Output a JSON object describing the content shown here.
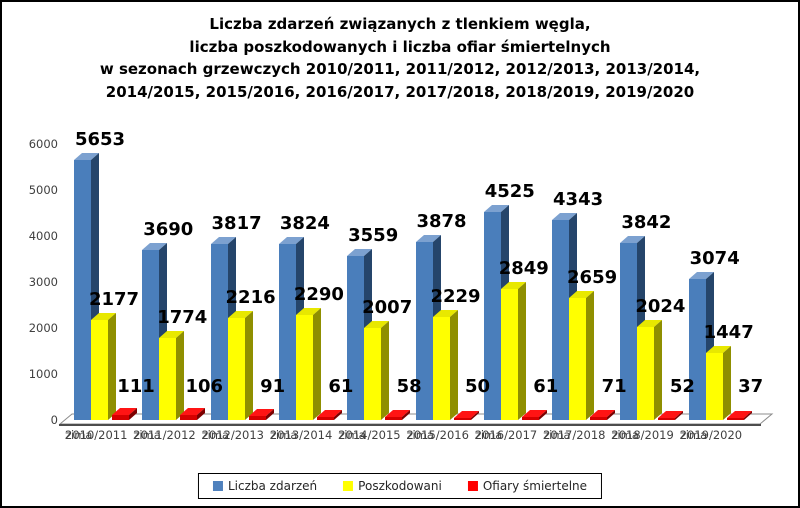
{
  "title": {
    "lines": [
      "Liczba zdarzeń związanych z tlenkiem węgla,",
      "liczba poszkodowanych i liczba ofiar śmiertelnych",
      "w sezonach grzewczych 2010/2011, 2011/2012, 2012/2013, 2013/2014,",
      "2014/2015, 2015/2016, 2016/2017, 2017/2018, 2018/2019, 2019/2020"
    ]
  },
  "chart_data": {
    "type": "bar",
    "style": "3d-clustered-column",
    "x_prefix": "zima",
    "categories": [
      "2010/2011",
      "2011/2012",
      "2012/2013",
      "2013/2014",
      "2014/2015",
      "2015/2016",
      "2016/2017",
      "2017/2018",
      "2018/2019",
      "2019/2020"
    ],
    "series": [
      {
        "name": "Liczba zdarzeń",
        "color": "#4F81BD",
        "values": [
          5653,
          3690,
          3817,
          3824,
          3559,
          3878,
          4525,
          4343,
          3842,
          3074
        ]
      },
      {
        "name": "Poszkodowani",
        "color": "#FFFF00",
        "values": [
          2177,
          1774,
          2216,
          2290,
          2007,
          2229,
          2849,
          2659,
          2024,
          1447
        ]
      },
      {
        "name": "Ofiary śmiertelne",
        "color": "#FF0000",
        "values": [
          111,
          106,
          91,
          61,
          58,
          50,
          61,
          71,
          52,
          37
        ]
      }
    ],
    "ylim": [
      0,
      6000
    ],
    "yticks": [
      0,
      1000,
      2000,
      3000,
      4000,
      5000,
      6000
    ],
    "grid": false,
    "data_labels": true,
    "legend_position": "bottom"
  },
  "colors": {
    "series_faces": [
      {
        "front": "#4A7EBB",
        "top": "#7CA1D0",
        "side": "#25456B"
      },
      {
        "front": "#FFFF00",
        "top": "#E8E800",
        "side": "#8F8F00"
      },
      {
        "front": "#D60000",
        "top": "#FF1414",
        "side": "#7D0000"
      }
    ],
    "legend_swatches": [
      "#4F81BD",
      "#FFFF00",
      "#FF0000"
    ],
    "axis_text": "#404040",
    "floor_fill": "#FFFFFF",
    "floor_stroke": "#8C8C8C",
    "floor_front_edge": "#4D4D4D"
  }
}
